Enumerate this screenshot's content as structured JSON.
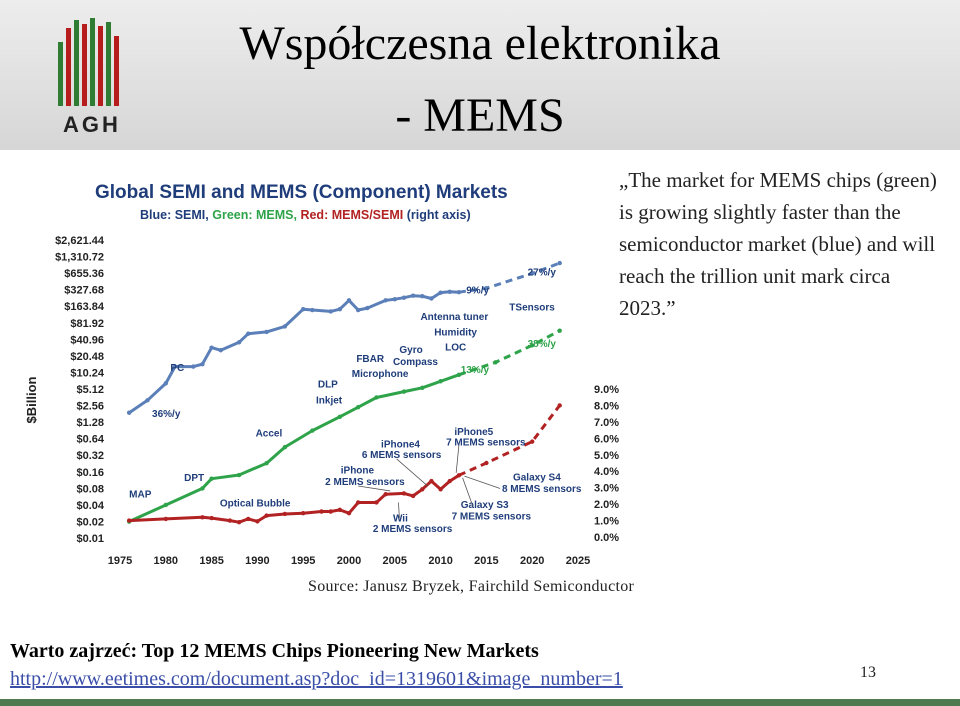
{
  "slide": {
    "title_line1": "Współczesna elektronika",
    "title_line2": "- MEMS",
    "logo_text": "AGH",
    "quote": "„The market for MEMS chips (green) is growing slightly faster than the semiconductor market (blue) and will reach the trillion unit mark circa 2023.”",
    "source": "Source: Janusz Bryzek, Fairchild Semiconductor",
    "warto": "Warto zajrzeć: Top 12 MEMS Chips Pioneering New Markets",
    "link": "http://www.eetimes.com/document.asp?doc_id=1319601&image_number=1",
    "page_number": "13"
  },
  "colors": {
    "semi": "#5b7fb8",
    "mems": "#2ea34a",
    "ratio": "#b22222",
    "title_text": "#1f3d7a"
  },
  "chart_data": {
    "type": "line",
    "title": "Global SEMI and MEMS (Component) Markets",
    "subtitle_parts": [
      {
        "text": "Blue: SEMI, ",
        "color": "#1f3d7a"
      },
      {
        "text": "Green: MEMS, ",
        "color": "#2ea34a"
      },
      {
        "text": "Red: MEMS/SEMI ",
        "color": "#b22222"
      },
      {
        "text": "(right axis)",
        "color": "#1f3d7a"
      }
    ],
    "ylabel": "$Billion",
    "x_ticks": [
      "1975",
      "1980",
      "1985",
      "1990",
      "1995",
      "2000",
      "2005",
      "2010",
      "2015",
      "2020",
      "2025"
    ],
    "xlim": [
      1975,
      2025
    ],
    "y_ticks": [
      "$2,621.44",
      "$1,310.72",
      "$655.36",
      "$327.68",
      "$163.84",
      "$81.92",
      "$40.96",
      "$20.48",
      "$10.24",
      "$5.12",
      "$2.56",
      "$1.28",
      "$0.64",
      "$0.32",
      "$0.16",
      "$0.08",
      "$0.04",
      "$0.02",
      "$0.01"
    ],
    "ylim_log2": [
      -6.64,
      11.36
    ],
    "y2_ticks": [
      "9.0%",
      "8.0%",
      "7.0%",
      "6.0%",
      "5.0%",
      "4.0%",
      "3.0%",
      "2.0%",
      "1.0%",
      "0.0%"
    ],
    "y2lim": [
      0,
      9
    ],
    "series": [
      {
        "name": "SEMI",
        "axis": "left",
        "color": "#5b7fb8",
        "dashed_from": 2012,
        "points": [
          [
            1976,
            1.9
          ],
          [
            1978,
            3.2
          ],
          [
            1980,
            6.5
          ],
          [
            1981,
            13.1
          ],
          [
            1983,
            13.1
          ],
          [
            1984,
            14.5
          ],
          [
            1985,
            29
          ],
          [
            1986,
            26
          ],
          [
            1988,
            36.2
          ],
          [
            1989,
            52
          ],
          [
            1991,
            56
          ],
          [
            1993,
            70.6
          ],
          [
            1995,
            145
          ],
          [
            1996,
            140
          ],
          [
            1998,
            132
          ],
          [
            1999,
            145
          ],
          [
            2000,
            210
          ],
          [
            2001,
            140
          ],
          [
            2002,
            152
          ],
          [
            2004,
            210
          ],
          [
            2005,
            220
          ],
          [
            2006,
            235
          ],
          [
            2007,
            255
          ],
          [
            2008,
            250
          ],
          [
            2009,
            227
          ],
          [
            2010,
            290
          ],
          [
            2011,
            300
          ],
          [
            2012,
            296
          ],
          [
            2015,
            350
          ],
          [
            2020,
            650
          ],
          [
            2023,
            1000
          ]
        ]
      },
      {
        "name": "MEMS",
        "axis": "left",
        "color": "#2ea34a",
        "dashed_from": 2012,
        "points": [
          [
            1976,
            0.02
          ],
          [
            1980,
            0.04
          ],
          [
            1984,
            0.08
          ],
          [
            1985,
            0.12
          ],
          [
            1988,
            0.14
          ],
          [
            1991,
            0.23
          ],
          [
            1993,
            0.45
          ],
          [
            1996,
            0.9
          ],
          [
            1999,
            1.6
          ],
          [
            2001,
            2.4
          ],
          [
            2003,
            3.6
          ],
          [
            2006,
            4.6
          ],
          [
            2008,
            5.4
          ],
          [
            2010,
            7.1
          ],
          [
            2012,
            9.3
          ],
          [
            2016,
            15.7
          ],
          [
            2020,
            32
          ],
          [
            2023,
            59
          ]
        ]
      },
      {
        "name": "MEMS/SEMI",
        "axis": "right",
        "color": "#b22222",
        "dashed_from": 2012,
        "points": [
          [
            1976,
            1.0
          ],
          [
            1980,
            1.1
          ],
          [
            1984,
            1.2
          ],
          [
            1985,
            1.15
          ],
          [
            1987,
            1.0
          ],
          [
            1988,
            0.9
          ],
          [
            1989,
            1.1
          ],
          [
            1990,
            0.95
          ],
          [
            1991,
            1.3
          ],
          [
            1993,
            1.4
          ],
          [
            1995,
            1.45
          ],
          [
            1997,
            1.55
          ],
          [
            1998,
            1.55
          ],
          [
            1999,
            1.65
          ],
          [
            2000,
            1.45
          ],
          [
            2001,
            2.1
          ],
          [
            2003,
            2.1
          ],
          [
            2004,
            2.6
          ],
          [
            2006,
            2.65
          ],
          [
            2007,
            2.5
          ],
          [
            2008,
            2.9
          ],
          [
            2009,
            3.4
          ],
          [
            2010,
            2.9
          ],
          [
            2011,
            3.4
          ],
          [
            2012,
            3.75
          ],
          [
            2015,
            4.5
          ],
          [
            2020,
            5.8
          ],
          [
            2023,
            8.0
          ]
        ]
      }
    ],
    "growth_labels": [
      {
        "text": "36%/y",
        "color": "#1f3d7a",
        "x": 1978.5,
        "y": 1.6,
        "axis": "left"
      },
      {
        "text": "9%/y",
        "color": "#1f3d7a",
        "x": 2012.8,
        "y": 280,
        "axis": "left"
      },
      {
        "text": "27%/y",
        "color": "#1f3d7a",
        "x": 2019.5,
        "y": 600,
        "axis": "left"
      },
      {
        "text": "38%/y",
        "color": "#2ea34a",
        "x": 2019.5,
        "y": 30,
        "axis": "left"
      },
      {
        "text": "13%/y",
        "color": "#2ea34a",
        "x": 2012.2,
        "y": 10,
        "axis": "left"
      }
    ],
    "annotations": [
      {
        "text": "MAP",
        "x": 1976,
        "y": 0.055,
        "axis": "left"
      },
      {
        "text": "DPT",
        "x": 1982,
        "y": 0.11,
        "axis": "left"
      },
      {
        "text": "Accel",
        "x": 1989.8,
        "y": 0.7,
        "axis": "left"
      },
      {
        "text": "PC",
        "x": 1980.5,
        "y": 11,
        "axis": "left"
      },
      {
        "text": "DLP",
        "x": 1996.6,
        "y": 5.5,
        "axis": "left"
      },
      {
        "text": "Inkjet",
        "x": 1996.4,
        "y": 2.8,
        "axis": "left"
      },
      {
        "text": "FBAR",
        "x": 2000.8,
        "y": 16,
        "axis": "left"
      },
      {
        "text": "Microphone",
        "x": 2000.3,
        "y": 8.4,
        "axis": "left"
      },
      {
        "text": "Gyro",
        "x": 2005.5,
        "y": 23,
        "axis": "left"
      },
      {
        "text": "Compass",
        "x": 2004.8,
        "y": 14,
        "axis": "left"
      },
      {
        "text": "Antenna tuner",
        "x": 2007.8,
        "y": 92,
        "axis": "left"
      },
      {
        "text": "Humidity",
        "x": 2009.3,
        "y": 48,
        "axis": "left"
      },
      {
        "text": "LOC",
        "x": 2010.5,
        "y": 26,
        "axis": "left"
      },
      {
        "text": "TSensors",
        "x": 2017.5,
        "y": 138,
        "axis": "left"
      },
      {
        "text": "iPhone5",
        "x": 2011.5,
        "y": 6.2,
        "axis": "right"
      },
      {
        "text": "7 MEMS sensors",
        "x": 2010.6,
        "y": 5.55,
        "axis": "right"
      },
      {
        "text": "iPhone4",
        "x": 2003.5,
        "y": 5.45,
        "axis": "right"
      },
      {
        "text": "6 MEMS sensors",
        "x": 2001.4,
        "y": 4.8,
        "axis": "right"
      },
      {
        "text": "iPhone",
        "x": 1999.1,
        "y": 3.85,
        "axis": "right"
      },
      {
        "text": "2 MEMS sensors",
        "x": 1997.4,
        "y": 3.15,
        "axis": "right"
      },
      {
        "text": "Optical Bubble",
        "x": 1985.9,
        "y": 1.85,
        "axis": "right"
      },
      {
        "text": "Wii",
        "x": 2004.8,
        "y": 0.95,
        "axis": "right"
      },
      {
        "text": "2 MEMS sensors",
        "x": 2002.6,
        "y": 0.3,
        "axis": "right"
      },
      {
        "text": "Galaxy S4",
        "x": 2017.9,
        "y": 3.45,
        "axis": "right"
      },
      {
        "text": "8 MEMS sensors",
        "x": 2016.7,
        "y": 2.75,
        "axis": "right"
      },
      {
        "text": "Galaxy S3",
        "x": 2012.2,
        "y": 1.75,
        "axis": "right"
      },
      {
        "text": "7 MEMS sensors",
        "x": 2011.2,
        "y": 1.05,
        "axis": "right"
      }
    ]
  }
}
